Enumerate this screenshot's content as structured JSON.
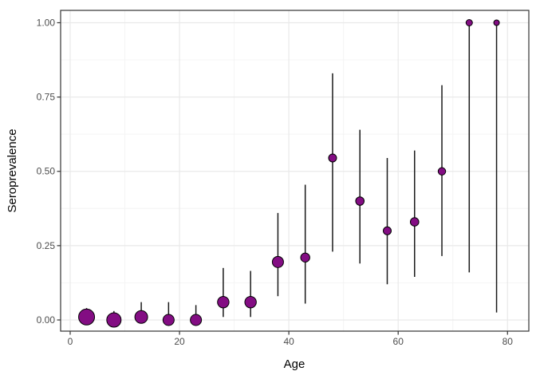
{
  "figure": {
    "background": "#ffffff"
  },
  "chart_data": {
    "type": "scatter",
    "title": "",
    "xlabel": "Age",
    "ylabel": "Seroprevalence",
    "description": "Seroprevalence point estimates by 5-year age bin with vertical confidence-interval error bars; point size varies by sample size",
    "x": [
      3,
      8,
      13,
      18,
      23,
      28,
      33,
      38,
      43,
      48,
      53,
      58,
      63,
      68,
      73,
      78
    ],
    "y": [
      0.01,
      0.0,
      0.01,
      0.0,
      0.0,
      0.06,
      0.06,
      0.195,
      0.21,
      0.545,
      0.4,
      0.3,
      0.33,
      0.5,
      1.0,
      1.0
    ],
    "ci_lower": [
      0.0,
      0.0,
      0.0,
      0.0,
      0.0,
      0.01,
      0.01,
      0.08,
      0.055,
      0.23,
      0.19,
      0.12,
      0.145,
      0.215,
      0.16,
      0.025
    ],
    "ci_upper": [
      0.04,
      0.03,
      0.06,
      0.06,
      0.05,
      0.175,
      0.165,
      0.36,
      0.455,
      0.83,
      0.64,
      0.545,
      0.57,
      0.79,
      1.0,
      1.0
    ],
    "point_radius_px": [
      10,
      9,
      8,
      7,
      7,
      7.2,
      7.2,
      7,
      5.7,
      5,
      5.3,
      5,
      5.3,
      4.7,
      4,
      3.5
    ],
    "x_ticks": [
      0,
      20,
      40,
      60,
      80
    ],
    "x_tick_labels": [
      "0",
      "20",
      "40",
      "60",
      "80"
    ],
    "y_ticks": [
      0,
      0.25,
      0.5,
      0.75,
      1
    ],
    "y_tick_labels": [
      "0.00",
      "0.25",
      "0.50",
      "0.75",
      "1.00"
    ],
    "x_minor_ticks": [
      10,
      30,
      50,
      70
    ],
    "y_minor_ticks": [
      0.125,
      0.375,
      0.625,
      0.875
    ],
    "xlim": [
      -1.75,
      83.9
    ],
    "ylim": [
      -0.0376,
      1.0416
    ],
    "grid": true,
    "legend": "none",
    "colors": {
      "point_fill": "#830d83",
      "point_stroke": "#000000",
      "error_bar": "#1a1a1a",
      "grid_major": "#e9e9e9",
      "grid_minor": "#f4f4f4",
      "panel_border": "#333333",
      "tick_mark": "#333333",
      "tick_label": "#4d4d4d",
      "axis_title": "#000000",
      "panel_background": "#ffffff"
    }
  }
}
